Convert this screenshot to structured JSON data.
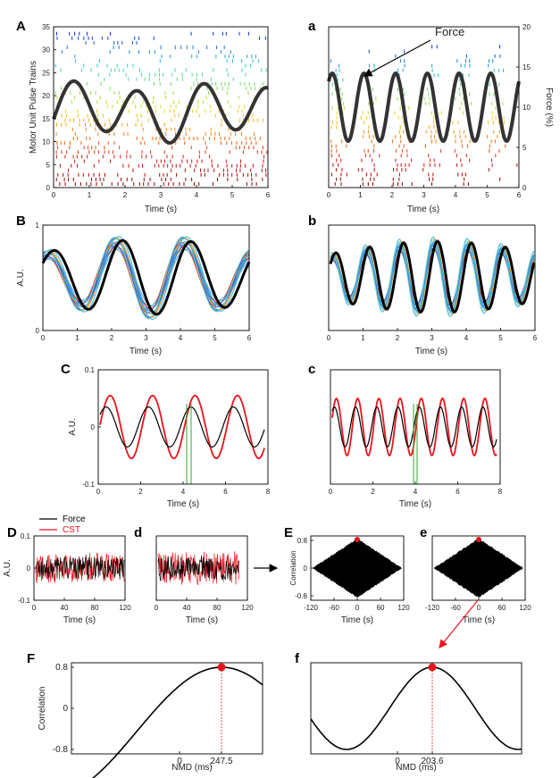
{
  "panels": {
    "A": {
      "letter": "A",
      "xlabel": "Time (s)",
      "ylabel": "Motor Unit Pulse Trains",
      "xticks": [
        "0",
        "1",
        "2",
        "3",
        "4",
        "5",
        "6"
      ],
      "yticks": [
        "0",
        "5",
        "10",
        "15",
        "20",
        "25",
        "30",
        "35"
      ]
    },
    "a": {
      "letter": "a",
      "xlabel": "Time (s)",
      "ylabel_right": "Force (%)",
      "xticks": [
        "0",
        "1",
        "2",
        "3",
        "4",
        "5",
        "6"
      ],
      "yticks_right": [
        "0",
        "5",
        "10",
        "15",
        "20"
      ],
      "annotation": "Force"
    },
    "B": {
      "letter": "B",
      "xlabel": "Time (s)",
      "ylabel": "A.U.",
      "xticks": [
        "0",
        "1",
        "2",
        "3",
        "4",
        "5",
        "6"
      ],
      "yticks": [
        "0",
        "1"
      ]
    },
    "b": {
      "letter": "b",
      "xlabel": "Time (s)",
      "xticks": [
        "0",
        "1",
        "2",
        "3",
        "4",
        "5",
        "6"
      ]
    },
    "C": {
      "letter": "C",
      "xlabel": "Time (s)",
      "ylabel": "A.U.",
      "xticks": [
        "0",
        "2",
        "4",
        "6",
        "8"
      ],
      "yticks": [
        "0.1",
        "0",
        "-0.1"
      ]
    },
    "c": {
      "letter": "c",
      "xlabel": "Time (s)",
      "xticks": [
        "0",
        "2",
        "4",
        "6",
        "8"
      ]
    },
    "D": {
      "letter": "D",
      "xlabel": "Time (s)",
      "ylabel": "A.U.",
      "xticks": [
        "0",
        "40",
        "80",
        "120"
      ],
      "yticks": [
        "0.1",
        "0",
        "-0.1"
      ],
      "legend": [
        {
          "label": "Force",
          "color": "#000000"
        },
        {
          "label": "CST",
          "color": "#e8141a"
        }
      ]
    },
    "d": {
      "letter": "d",
      "xlabel": "Time (s)",
      "xticks": [
        "0",
        "40",
        "80",
        "120"
      ]
    },
    "E": {
      "letter": "E",
      "xlabel": "Time (s)",
      "ylabel": "Correlation",
      "xticks": [
        "-120",
        "-60",
        "0",
        "60",
        "120"
      ],
      "yticks": [
        "0.8",
        "0",
        "-0.8"
      ]
    },
    "e": {
      "letter": "e",
      "xlabel": "Time (s)",
      "xticks": [
        "-120",
        "-60",
        "0",
        "60",
        "120"
      ]
    },
    "F": {
      "letter": "F",
      "xlabel": "NMD (ms)",
      "ylabel": "Correlation",
      "xticks": [
        "0",
        "247.5"
      ],
      "yticks": [
        "0.8",
        "0",
        "-0.8"
      ]
    },
    "f": {
      "letter": "f",
      "xlabel": "NMD (ms)",
      "xticks": [
        "0",
        "203.6"
      ]
    }
  },
  "colors": {
    "force": "#333333",
    "cst": "#e8141a",
    "marker": "#e8141a",
    "guide": "#33aa33"
  },
  "chart_data": [
    {
      "id": "A",
      "type": "scatter",
      "xlabel": "Time (s)",
      "ylabel": "Motor Unit Pulse Trains",
      "xlim": [
        0,
        6
      ],
      "ylim": [
        0,
        35
      ],
      "series_count_approx": 35
    },
    {
      "id": "a",
      "type": "line",
      "xlabel": "Time (s)",
      "ylabel": "Force (%)",
      "xlim": [
        0,
        6
      ],
      "ylim": [
        0,
        20
      ],
      "series": [
        {
          "name": "Force",
          "freq_hz": 1.0,
          "mean": 10,
          "amplitude": 4
        }
      ]
    },
    {
      "id": "B",
      "type": "line",
      "xlabel": "Time (s)",
      "ylabel": "A.U.",
      "xlim": [
        0,
        6
      ],
      "ylim": [
        0,
        1
      ]
    },
    {
      "id": "b",
      "type": "line",
      "xlabel": "Time (s)",
      "xlim": [
        0,
        6
      ],
      "ylim": [
        0,
        1
      ]
    },
    {
      "id": "C",
      "type": "line",
      "xlabel": "Time (s)",
      "ylabel": "A.U.",
      "xlim": [
        0,
        8
      ],
      "ylim": [
        -0.1,
        0.1
      ],
      "series": [
        {
          "color": "#e8141a",
          "amplitude": 0.055,
          "period_s": 2.0
        },
        {
          "color": "#000000",
          "amplitude": 0.035,
          "period_s": 2.0
        }
      ]
    },
    {
      "id": "c",
      "type": "line",
      "xlabel": "Time (s)",
      "xlim": [
        0,
        8
      ],
      "ylim": [
        -0.1,
        0.1
      ],
      "series": [
        {
          "color": "#e8141a",
          "amplitude": 0.05,
          "period_s": 1.0
        },
        {
          "color": "#000000",
          "amplitude": 0.035,
          "period_s": 1.0
        }
      ]
    },
    {
      "id": "D",
      "type": "line",
      "xlabel": "Time (s)",
      "ylabel": "A.U.",
      "xlim": [
        0,
        120
      ],
      "ylim": [
        -0.1,
        0.1
      ]
    },
    {
      "id": "d",
      "type": "line",
      "xlabel": "Time (s)",
      "xlim": [
        0,
        120
      ],
      "ylim": [
        -0.1,
        0.1
      ]
    },
    {
      "id": "E",
      "type": "area",
      "xlabel": "Time (s)",
      "ylabel": "Correlation",
      "xlim": [
        -120,
        120
      ],
      "ylim": [
        -0.8,
        0.8
      ],
      "peak": [
        0,
        0.8
      ]
    },
    {
      "id": "e",
      "type": "area",
      "xlabel": "Time (s)",
      "xlim": [
        -120,
        120
      ],
      "ylim": [
        -0.8,
        0.8
      ],
      "peak": [
        0,
        0.8
      ]
    },
    {
      "id": "F",
      "type": "line",
      "xlabel": "NMD (ms)",
      "ylabel": "Correlation",
      "ylim": [
        -0.8,
        0.8
      ],
      "peak": [
        247.5,
        0.8
      ]
    },
    {
      "id": "f",
      "type": "line",
      "xlabel": "NMD (ms)",
      "ylim": [
        -0.8,
        0.8
      ],
      "peak": [
        203.6,
        0.8
      ]
    }
  ]
}
